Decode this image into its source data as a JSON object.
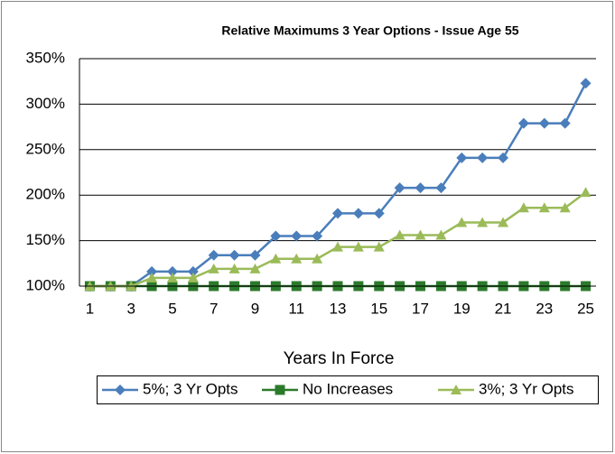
{
  "chart_data": {
    "type": "line",
    "title": "Relative Maximums 3 Year Options - Issue Age 55",
    "x_label": "Years In Force",
    "categories": [
      1,
      null,
      3,
      null,
      5,
      null,
      7,
      null,
      9,
      null,
      11,
      null,
      13,
      null,
      15,
      null,
      17,
      null,
      19,
      null,
      21,
      null,
      23,
      null,
      25
    ],
    "series": [
      {
        "name": "5%; 3 Yr Opts",
        "color": "#4a7ebb",
        "marker": "diamond",
        "values": [
          100,
          100,
          100,
          116,
          116,
          116,
          134,
          134,
          134,
          155,
          155,
          155,
          180,
          180,
          180,
          208,
          208,
          208,
          241,
          241,
          241,
          279,
          279,
          279,
          323
        ]
      },
      {
        "name": "No Increases",
        "color": "#2b7a2b",
        "marker": "square",
        "values": [
          100,
          100,
          100,
          100,
          100,
          100,
          100,
          100,
          100,
          100,
          100,
          100,
          100,
          100,
          100,
          100,
          100,
          100,
          100,
          100,
          100,
          100,
          100,
          100,
          100
        ]
      },
      {
        "name": "3%; 3 Yr Opts",
        "color": "#9bbb59",
        "marker": "triangle",
        "values": [
          100,
          100,
          100,
          109,
          109,
          109,
          119,
          119,
          119,
          130,
          130,
          130,
          143,
          143,
          143,
          156,
          156,
          156,
          170,
          170,
          170,
          186,
          186,
          186,
          203
        ]
      }
    ],
    "ylim": [
      100,
      350
    ],
    "yticks": [
      {
        "value": 100,
        "label": "100%"
      },
      {
        "value": 150,
        "label": "150%"
      },
      {
        "value": 200,
        "label": "200%"
      },
      {
        "value": 250,
        "label": "250%"
      },
      {
        "value": 300,
        "label": "300%"
      },
      {
        "value": 350,
        "label": "350%"
      }
    ],
    "grid": true,
    "legend": "bottom"
  }
}
